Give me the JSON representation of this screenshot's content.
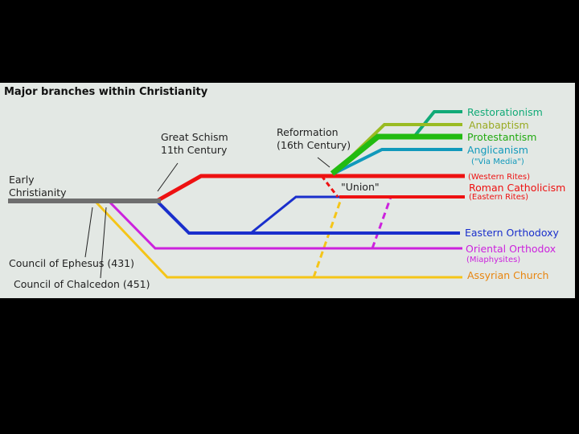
{
  "title": "Major branches within Christianity",
  "labels": {
    "early": [
      "Early",
      "Christianity"
    ],
    "schism": [
      "Great Schism",
      "11th Century"
    ],
    "reformation": [
      "Reformation",
      "(16th Century)"
    ],
    "union": "\"Union\"",
    "ephesus": "Council of Ephesus (431)",
    "chalcedon": "Council of Chalcedon (451)"
  },
  "branches": {
    "restorationism": "Restorationism",
    "anabaptism": "Anabaptism",
    "protestantism": "Protestantism",
    "anglicanism": "Anglicanism",
    "via_media": "(\"Via Media\")",
    "western_rites": "(Western Rites)",
    "roman_catholicism": "Roman Catholicism",
    "eastern_rites": "(Eastern Rites)",
    "eastern_orthodoxy": "Eastern Orthodoxy",
    "oriental_orthodox": "Oriental Orthodox",
    "miaphysites": "(Miaphysites)",
    "assyrian": "Assyrian Church"
  },
  "colors": {
    "background": "#000000",
    "panel": "#e3e8e4",
    "early": "#6e6e6e",
    "catholic": "#ee1111",
    "orthodox": "#1a2fcc",
    "oriental": "#cc22dd",
    "assyrian": "#f5c518",
    "protestant": "#22bb11",
    "anabaptist": "#99bb22",
    "restoration": "#11aa77",
    "anglican": "#1199bb"
  }
}
